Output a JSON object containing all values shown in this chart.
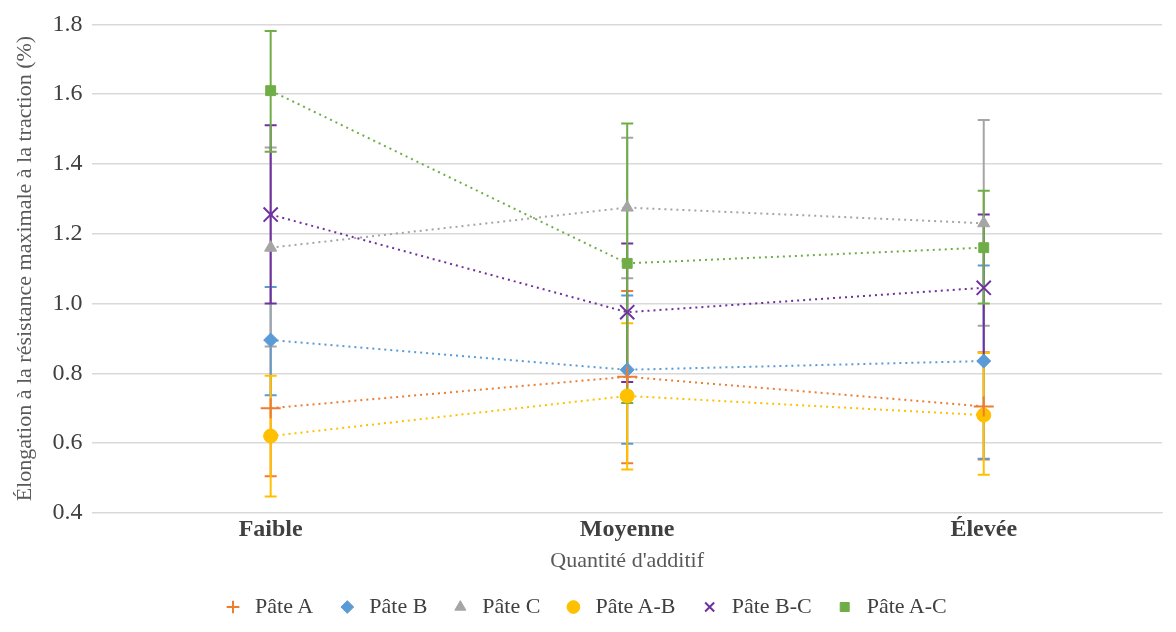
{
  "chart_data": {
    "type": "line",
    "xlabel": "Quantité d'additif",
    "ylabel": "Élongation à la résistance maximale à la traction (%)",
    "categories": [
      "Faible",
      "Moyenne",
      "Élevée"
    ],
    "ylim": [
      0.4,
      1.8
    ],
    "yticks": [
      {
        "value": 0.4,
        "label": "0.4"
      },
      {
        "value": 0.6,
        "label": "0.6"
      },
      {
        "value": 0.8,
        "label": "0.8"
      },
      {
        "value": 1.0,
        "label": "1.0"
      },
      {
        "value": 1.2,
        "label": "1.2"
      },
      {
        "value": 1.4,
        "label": "1.4"
      },
      {
        "value": 1.6,
        "label": "1.6"
      },
      {
        "value": 1.8,
        "label": "1.8"
      }
    ],
    "grid": "y",
    "legend": "bottom",
    "line_style": "dotted",
    "series": [
      {
        "name": "Pâte A",
        "color": "#ed7d31",
        "marker": "plus",
        "values": [
          0.7,
          0.79,
          0.705
        ],
        "errors": [
          [
            0.505,
            0.895
          ],
          [
            0.542,
            1.036
          ],
          [
            0.553,
            0.86
          ]
        ]
      },
      {
        "name": "Pâte B",
        "color": "#5b9bd5",
        "marker": "diamond",
        "values": [
          0.895,
          0.81,
          0.835
        ],
        "errors": [
          [
            0.737,
            1.047
          ],
          [
            0.598,
            1.023
          ],
          [
            0.555,
            1.109
          ]
        ]
      },
      {
        "name": "Pâte C",
        "color": "#a5a5a5",
        "marker": "triangle",
        "values": [
          1.16,
          1.275,
          1.23
        ],
        "errors": [
          [
            0.877,
            1.447
          ],
          [
            1.072,
            1.475
          ],
          [
            0.936,
            1.526
          ]
        ]
      },
      {
        "name": "Pâte A-B",
        "color": "#ffc000",
        "marker": "circle",
        "values": [
          0.62,
          0.735,
          0.68
        ],
        "errors": [
          [
            0.447,
            0.793
          ],
          [
            0.524,
            0.943
          ],
          [
            0.509,
            0.858
          ]
        ]
      },
      {
        "name": "Pâte B-C",
        "color": "#7030a0",
        "marker": "cross",
        "values": [
          1.255,
          0.975,
          1.045
        ],
        "errors": [
          [
            1.0,
            1.511
          ],
          [
            0.775,
            1.172
          ],
          0.21
        ]
      },
      {
        "name": "Pâte A-C",
        "color": "#70ad47",
        "marker": "square",
        "values": [
          1.61,
          1.115,
          1.16
        ],
        "errors": [
          [
            1.435,
            1.781
          ],
          [
            0.715,
            1.516
          ],
          [
            1.0,
            1.323
          ]
        ]
      }
    ]
  }
}
